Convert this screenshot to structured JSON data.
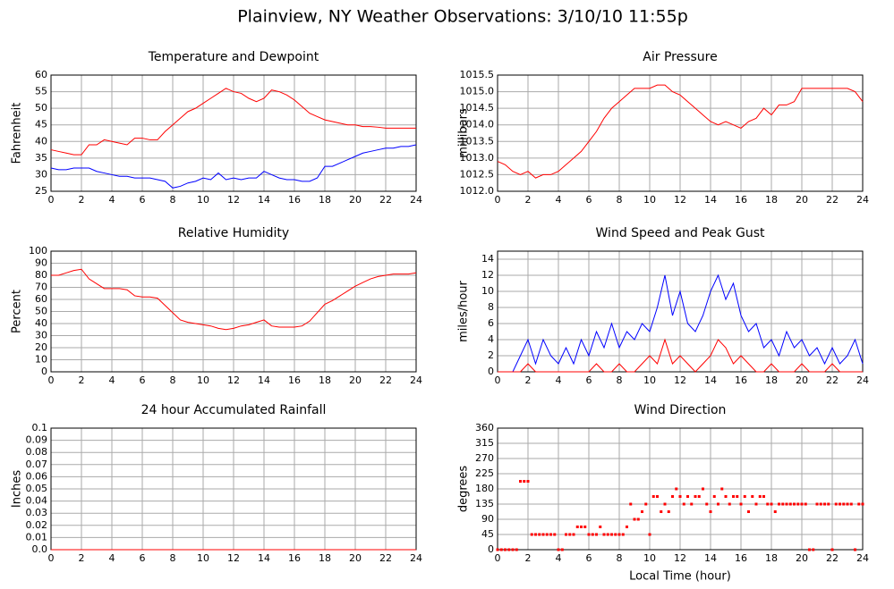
{
  "title": "Plainview, NY Weather Observations: 3/10/10 11:55p",
  "chart_data": [
    {
      "type": "line",
      "title": "Temperature and Dewpoint",
      "ylabel": "Fahrenheit",
      "x": [
        0,
        0.5,
        1,
        1.5,
        2,
        2.5,
        3,
        3.5,
        4,
        4.5,
        5,
        5.5,
        6,
        6.5,
        7,
        7.5,
        8,
        8.5,
        9,
        9.5,
        10,
        10.5,
        11,
        11.5,
        12,
        12.5,
        13,
        13.5,
        14,
        14.5,
        15,
        15.5,
        16,
        16.5,
        17,
        17.5,
        18,
        18.5,
        19,
        19.5,
        20,
        20.5,
        21,
        21.5,
        22,
        22.5,
        23,
        23.5,
        24
      ],
      "series": [
        {
          "color": "#ff0000",
          "values": [
            37.5,
            37,
            36.5,
            36,
            36,
            39,
            39,
            40.5,
            40,
            39.5,
            39,
            41,
            41,
            40.5,
            40.5,
            43,
            45,
            47,
            49,
            50,
            51.5,
            53,
            54.5,
            56,
            55,
            54.5,
            53,
            52,
            53,
            55.5,
            55,
            54,
            52.5,
            50.5,
            48.5,
            47.5,
            46.5,
            46,
            45.5,
            45,
            45,
            44.5,
            44.5,
            44.3,
            44,
            44,
            44,
            44,
            44
          ]
        },
        {
          "color": "#0000ff",
          "values": [
            32,
            31.5,
            31.5,
            32,
            32,
            32,
            31,
            30.5,
            30,
            29.5,
            29.5,
            29,
            29,
            29,
            28.5,
            28,
            26,
            26.5,
            27.5,
            28,
            29,
            28.5,
            30.5,
            28.5,
            29,
            28.5,
            29,
            29,
            31,
            30,
            29,
            28.5,
            28.5,
            28,
            28,
            29,
            32.5,
            32.5,
            33.5,
            34.5,
            35.5,
            36.5,
            37,
            37.5,
            38,
            38,
            38.5,
            38.5,
            39
          ]
        }
      ],
      "xlim": [
        0,
        24
      ],
      "xticks": [
        0,
        2,
        4,
        6,
        8,
        10,
        12,
        14,
        16,
        18,
        20,
        22,
        24
      ],
      "ylim": [
        25,
        60
      ],
      "yticks": [
        25,
        30,
        35,
        40,
        45,
        50,
        55,
        60
      ],
      "grid": true
    },
    {
      "type": "line",
      "title": "Air Pressure",
      "ylabel": "millibars",
      "x": [
        0,
        0.5,
        1,
        1.5,
        2,
        2.5,
        3,
        3.5,
        4,
        4.5,
        5,
        5.5,
        6,
        6.5,
        7,
        7.5,
        8,
        8.5,
        9,
        9.5,
        10,
        10.5,
        11,
        11.5,
        12,
        12.5,
        13,
        13.5,
        14,
        14.5,
        15,
        15.5,
        16,
        16.5,
        17,
        17.5,
        18,
        18.5,
        19,
        19.5,
        20,
        20.5,
        21,
        21.5,
        22,
        22.5,
        23,
        23.5,
        24
      ],
      "series": [
        {
          "color": "#ff0000",
          "values": [
            1012.9,
            1012.8,
            1012.6,
            1012.5,
            1012.6,
            1012.4,
            1012.5,
            1012.5,
            1012.6,
            1012.8,
            1013.0,
            1013.2,
            1013.5,
            1013.8,
            1014.2,
            1014.5,
            1014.7,
            1014.9,
            1015.1,
            1015.1,
            1015.1,
            1015.2,
            1015.2,
            1015.0,
            1014.9,
            1014.7,
            1014.5,
            1014.3,
            1014.1,
            1014.0,
            1014.1,
            1014.0,
            1013.9,
            1014.1,
            1014.2,
            1014.5,
            1014.3,
            1014.6,
            1014.6,
            1014.7,
            1015.1,
            1015.1,
            1015.1,
            1015.1,
            1015.1,
            1015.1,
            1015.1,
            1015.0,
            1014.7
          ]
        }
      ],
      "xlim": [
        0,
        24
      ],
      "xticks": [
        0,
        2,
        4,
        6,
        8,
        10,
        12,
        14,
        16,
        18,
        20,
        22,
        24
      ],
      "ylim": [
        1012.0,
        1015.5
      ],
      "yticks": [
        {
          "value": 1012.0,
          "label": "1012.0"
        },
        {
          "value": 1012.5,
          "label": "1012.5"
        },
        {
          "value": 1013.0,
          "label": "1013.0"
        },
        {
          "value": 1013.5,
          "label": "1013.5"
        },
        {
          "value": 1014.0,
          "label": "1014.0"
        },
        {
          "value": 1014.5,
          "label": "1014.5"
        },
        {
          "value": 1015.0,
          "label": "1015.0"
        },
        {
          "value": 1015.5,
          "label": "1015.5"
        }
      ],
      "grid": true
    },
    {
      "type": "line",
      "title": "Relative Humidity",
      "ylabel": "Percent",
      "x": [
        0,
        0.5,
        1,
        1.5,
        2,
        2.5,
        3,
        3.5,
        4,
        4.5,
        5,
        5.5,
        6,
        6.5,
        7,
        7.5,
        8,
        8.5,
        9,
        9.5,
        10,
        10.5,
        11,
        11.5,
        12,
        12.5,
        13,
        13.5,
        14,
        14.5,
        15,
        15.5,
        16,
        16.5,
        17,
        17.5,
        18,
        18.5,
        19,
        19.5,
        20,
        20.5,
        21,
        21.5,
        22,
        22.5,
        23,
        23.5,
        24
      ],
      "series": [
        {
          "color": "#ff0000",
          "values": [
            80,
            80,
            82,
            84,
            85,
            77,
            73,
            69,
            69,
            69,
            68,
            63,
            62,
            62,
            61,
            55,
            49,
            43,
            41,
            40,
            39,
            38,
            36,
            35,
            36,
            38,
            39,
            41,
            43,
            38,
            37,
            37,
            37,
            38,
            42,
            49,
            56,
            59,
            63,
            67,
            71,
            74,
            77,
            79,
            80,
            81,
            81,
            81,
            82
          ]
        }
      ],
      "xlim": [
        0,
        24
      ],
      "xticks": [
        0,
        2,
        4,
        6,
        8,
        10,
        12,
        14,
        16,
        18,
        20,
        22,
        24
      ],
      "ylim": [
        0,
        100
      ],
      "yticks": [
        0,
        10,
        20,
        30,
        40,
        50,
        60,
        70,
        80,
        90,
        100
      ],
      "grid": true
    },
    {
      "type": "line",
      "title": "Wind Speed and Peak Gust",
      "ylabel": "miles/hour",
      "x": [
        0,
        0.5,
        1,
        1.5,
        2,
        2.5,
        3,
        3.5,
        4,
        4.5,
        5,
        5.5,
        6,
        6.5,
        7,
        7.5,
        8,
        8.5,
        9,
        9.5,
        10,
        10.5,
        11,
        11.5,
        12,
        12.5,
        13,
        13.5,
        14,
        14.5,
        15,
        15.5,
        16,
        16.5,
        17,
        17.5,
        18,
        18.5,
        19,
        19.5,
        20,
        20.5,
        21,
        21.5,
        22,
        22.5,
        23,
        23.5,
        24
      ],
      "series": [
        {
          "color": "#0000ff",
          "values": [
            0,
            0,
            0,
            2,
            4,
            1,
            4,
            2,
            1,
            3,
            1,
            4,
            2,
            5,
            3,
            6,
            3,
            5,
            4,
            6,
            5,
            8,
            12,
            7,
            10,
            6,
            5,
            7,
            10,
            12,
            9,
            11,
            7,
            5,
            6,
            3,
            4,
            2,
            5,
            3,
            4,
            2,
            3,
            1,
            3,
            1,
            2,
            4,
            1
          ]
        },
        {
          "color": "#ff0000",
          "values": [
            0,
            0,
            0,
            0,
            1,
            0,
            0,
            0,
            0,
            0,
            0,
            0,
            0,
            1,
            0,
            0,
            1,
            0,
            0,
            1,
            2,
            1,
            4,
            1,
            2,
            1,
            0,
            1,
            2,
            4,
            3,
            1,
            2,
            1,
            0,
            0,
            1,
            0,
            0,
            0,
            1,
            0,
            0,
            0,
            1,
            0,
            0,
            0,
            0
          ]
        }
      ],
      "xlim": [
        0,
        24
      ],
      "xticks": [
        0,
        2,
        4,
        6,
        8,
        10,
        12,
        14,
        16,
        18,
        20,
        22,
        24
      ],
      "ylim": [
        0,
        15
      ],
      "yticks": [
        0,
        2,
        4,
        6,
        8,
        10,
        12,
        14
      ],
      "grid": true
    },
    {
      "type": "line",
      "title": "24 hour Accumulated Rainfall",
      "ylabel": "Inches",
      "x": [
        0,
        24
      ],
      "series": [
        {
          "color": "#ff0000",
          "values": [
            0,
            0
          ]
        }
      ],
      "xlim": [
        0,
        24
      ],
      "xticks": [
        0,
        2,
        4,
        6,
        8,
        10,
        12,
        14,
        16,
        18,
        20,
        22,
        24
      ],
      "ylim": [
        0,
        0.1
      ],
      "yticks": [
        {
          "value": 0,
          "label": "0.0"
        },
        0.01,
        0.02,
        0.03,
        0.04,
        0.05,
        0.06,
        0.07,
        0.08,
        0.09,
        0.1
      ],
      "grid": true
    },
    {
      "type": "scatter",
      "title": "Wind Direction",
      "ylabel": "degrees",
      "xlabel": "Local Time (hour)",
      "x": [
        0,
        0.25,
        0.5,
        0.75,
        1,
        1.25,
        1.5,
        1.75,
        2,
        2.25,
        2.5,
        2.75,
        3,
        3.25,
        3.5,
        3.75,
        4,
        4.25,
        4.5,
        4.75,
        5,
        5.25,
        5.5,
        5.75,
        6,
        6.25,
        6.5,
        6.75,
        7,
        7.25,
        7.5,
        7.75,
        8,
        8.25,
        8.5,
        8.75,
        9,
        9.25,
        9.5,
        9.75,
        10,
        10.25,
        10.5,
        10.75,
        11,
        11.25,
        11.5,
        11.75,
        12,
        12.25,
        12.5,
        12.75,
        13,
        13.25,
        13.5,
        13.75,
        14,
        14.25,
        14.5,
        14.75,
        15,
        15.25,
        15.5,
        15.75,
        16,
        16.25,
        16.5,
        16.75,
        17,
        17.25,
        17.5,
        17.75,
        18,
        18.25,
        18.5,
        18.75,
        19,
        19.25,
        19.5,
        19.75,
        20,
        20.25,
        20.5,
        20.75,
        21,
        21.25,
        21.5,
        21.75,
        22,
        22.25,
        22.5,
        22.75,
        23,
        23.25,
        23.5,
        23.75,
        24
      ],
      "series": [
        {
          "color": "#ff0000",
          "values": [
            0,
            0,
            0,
            0,
            0,
            0,
            202.5,
            202.5,
            202.5,
            45,
            45,
            45,
            45,
            45,
            45,
            45,
            0,
            0,
            45,
            45,
            45,
            67.5,
            67.5,
            67.5,
            45,
            45,
            45,
            67.5,
            45,
            45,
            45,
            45,
            45,
            45,
            67.5,
            135,
            90,
            90,
            112.5,
            135,
            45,
            157.5,
            157.5,
            112.5,
            135,
            112.5,
            157.5,
            180,
            157.5,
            135,
            157.5,
            135,
            157.5,
            157.5,
            180,
            135,
            112.5,
            157.5,
            135,
            180,
            157.5,
            135,
            157.5,
            157.5,
            135,
            157.5,
            112.5,
            157.5,
            135,
            157.5,
            157.5,
            135,
            135,
            112.5,
            135,
            135,
            135,
            135,
            135,
            135,
            135,
            135,
            0,
            0,
            135,
            135,
            135,
            135,
            0,
            135,
            135,
            135,
            135,
            135,
            0,
            135,
            135
          ]
        }
      ],
      "xlim": [
        0,
        24
      ],
      "xticks": [
        0,
        2,
        4,
        6,
        8,
        10,
        12,
        14,
        16,
        18,
        20,
        22,
        24
      ],
      "ylim": [
        0,
        360
      ],
      "yticks": [
        0,
        45,
        90,
        135,
        180,
        225,
        270,
        315,
        360
      ],
      "grid": true
    }
  ]
}
